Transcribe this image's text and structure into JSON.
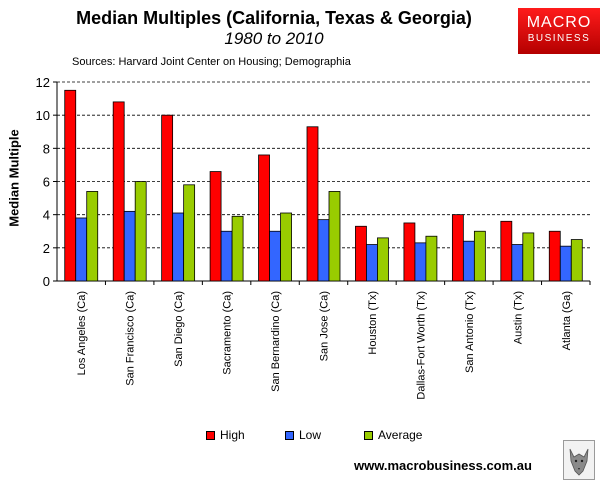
{
  "header": {
    "title": "Median Multiples (California, Texas & Georgia)",
    "subtitle": "1980 to 2010",
    "sources": "Sources: Harvard Joint Center on Housing; Demographia"
  },
  "logo": {
    "line1": "MACRO",
    "line2": "BUSINESS"
  },
  "footer": {
    "website": "www.macrobusiness.com.au"
  },
  "colors": {
    "high": "#ff0000",
    "low": "#3366ff",
    "average": "#99cc00"
  },
  "chart_data": {
    "type": "bar",
    "title": "Median Multiples (California, Texas & Georgia)",
    "subtitle": "1980 to 2010",
    "ylabel": "Median Multiple",
    "xlabel": "",
    "ylim": [
      0,
      12
    ],
    "yticks": [
      0,
      2,
      4,
      6,
      8,
      10,
      12
    ],
    "grid": "horizontal dashed",
    "legend_position": "bottom",
    "categories": [
      "Los Angeles (Ca)",
      "San Francisco (Ca)",
      "San Diego (Ca)",
      "Sacramento (Ca)",
      "San Bernardino (Ca)",
      "San Jose (Ca)",
      "Houston (Tx)",
      "Dallas-Fort Worth (Tx)",
      "San Antonio (Tx)",
      "Austin (Tx)",
      "Atlanta (Ga)"
    ],
    "series": [
      {
        "name": "High",
        "color": "#ff0000",
        "values": [
          11.5,
          10.8,
          10.0,
          6.6,
          7.6,
          9.3,
          3.3,
          3.5,
          4.0,
          3.6,
          3.0
        ]
      },
      {
        "name": "Low",
        "color": "#3366ff",
        "values": [
          3.8,
          4.2,
          4.1,
          3.0,
          3.0,
          3.7,
          2.2,
          2.3,
          2.4,
          2.2,
          2.1
        ]
      },
      {
        "name": "Average",
        "color": "#99cc00",
        "values": [
          5.4,
          6.0,
          5.8,
          3.9,
          4.1,
          5.4,
          2.6,
          2.7,
          3.0,
          2.9,
          2.5
        ]
      }
    ]
  }
}
